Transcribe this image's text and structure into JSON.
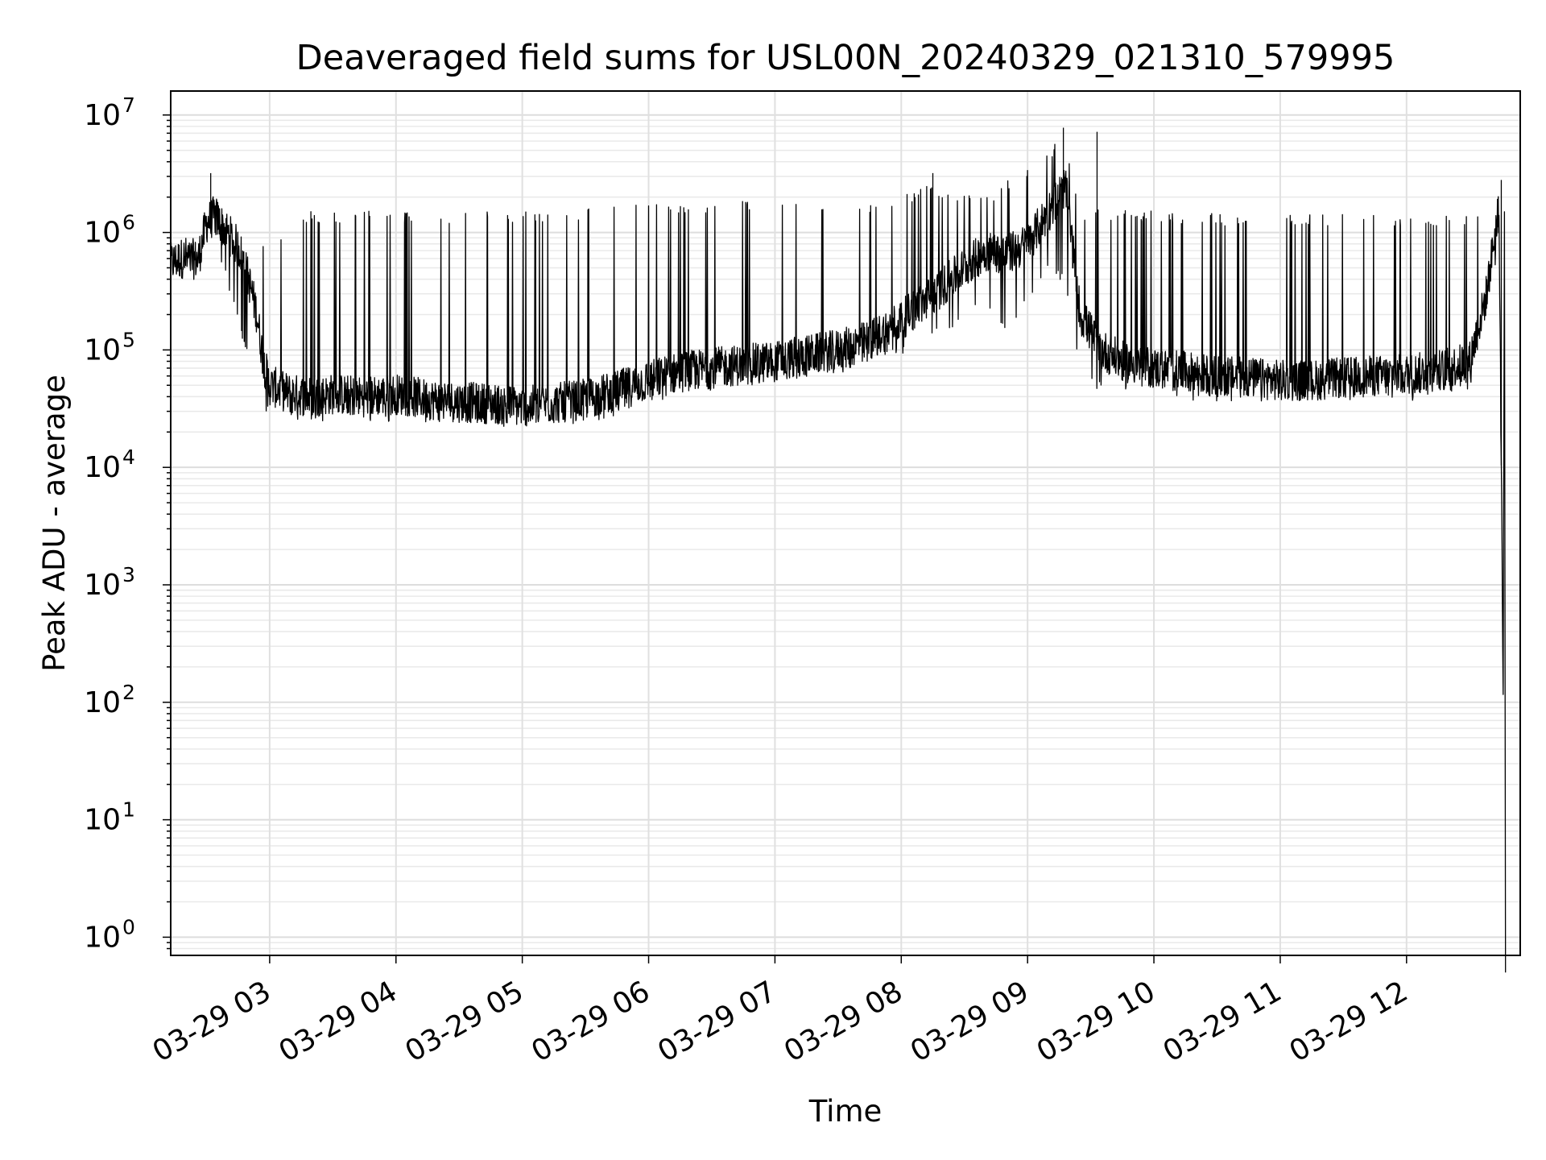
{
  "chart_data": {
    "type": "line",
    "title": "Deaveraged field sums for USL00N_20240329_021310_579995",
    "xlabel": "Time",
    "ylabel": "Peak ADU - average",
    "yscale": "log",
    "xlim": [
      "2024-03-29 02:13",
      "2024-03-29 12:54"
    ],
    "ylim": [
      0.7,
      16000000
    ],
    "grid": true,
    "line_color": "#000000",
    "x_tick_labels": [
      "03-29 03",
      "03-29 04",
      "03-29 05",
      "03-29 06",
      "03-29 07",
      "03-29 08",
      "03-29 09",
      "03-29 10",
      "03-29 11",
      "03-29 12"
    ],
    "y_tick_labels": [
      {
        "base": "10",
        "exp": "0"
      },
      {
        "base": "10",
        "exp": "1"
      },
      {
        "base": "10",
        "exp": "2"
      },
      {
        "base": "10",
        "exp": "3"
      },
      {
        "base": "10",
        "exp": "4"
      },
      {
        "base": "10",
        "exp": "5"
      },
      {
        "base": "10",
        "exp": "6"
      },
      {
        "base": "10",
        "exp": "7"
      }
    ],
    "series": [
      {
        "color": "#000000",
        "x": [
          "2024-03-29 02:13",
          "2024-03-29 02:20",
          "2024-03-29 02:26",
          "2024-03-29 02:30",
          "2024-03-29 02:34",
          "2024-03-29 02:38",
          "2024-03-29 02:42",
          "2024-03-29 02:46",
          "2024-03-29 02:50",
          "2024-03-29 02:54",
          "2024-03-29 02:57",
          "2024-03-29 03:00",
          "2024-03-29 03:10",
          "2024-03-29 03:20",
          "2024-03-29 03:30",
          "2024-03-29 03:45",
          "2024-03-29 04:00",
          "2024-03-29 04:15",
          "2024-03-29 04:30",
          "2024-03-29 04:45",
          "2024-03-29 05:00",
          "2024-03-29 05:15",
          "2024-03-29 05:30",
          "2024-03-29 05:45",
          "2024-03-29 06:00",
          "2024-03-29 06:15",
          "2024-03-29 06:30",
          "2024-03-29 06:45",
          "2024-03-29 07:00",
          "2024-03-29 07:15",
          "2024-03-29 07:30",
          "2024-03-29 07:45",
          "2024-03-29 08:00",
          "2024-03-29 08:10",
          "2024-03-29 08:20",
          "2024-03-29 08:30",
          "2024-03-29 08:40",
          "2024-03-29 08:50",
          "2024-03-29 09:00",
          "2024-03-29 09:10",
          "2024-03-29 09:18",
          "2024-03-29 09:25",
          "2024-03-29 09:35",
          "2024-03-29 09:45",
          "2024-03-29 10:00",
          "2024-03-29 10:15",
          "2024-03-29 10:30",
          "2024-03-29 10:45",
          "2024-03-29 11:00",
          "2024-03-29 11:15",
          "2024-03-29 11:30",
          "2024-03-29 11:45",
          "2024-03-29 12:00",
          "2024-03-29 12:10",
          "2024-03-29 12:20",
          "2024-03-29 12:30",
          "2024-03-29 12:38",
          "2024-03-29 12:42",
          "2024-03-29 12:44",
          "2024-03-29 12:47"
        ],
        "baseline": [
          550000,
          620000,
          580000,
          1200000,
          1400000,
          1100000,
          900000,
          700000,
          400000,
          200000,
          80000,
          50000,
          42000,
          40000,
          42000,
          40000,
          42000,
          38000,
          36000,
          35000,
          33000,
          35000,
          38000,
          45000,
          55000,
          65000,
          70000,
          75000,
          80000,
          90000,
          100000,
          120000,
          180000,
          250000,
          350000,
          500000,
          700000,
          650000,
          800000,
          1500000,
          2500000,
          200000,
          100000,
          80000,
          70000,
          65000,
          60000,
          58000,
          55000,
          55000,
          58000,
          60000,
          62000,
          65000,
          70000,
          80000,
          300000,
          1000000,
          1500000,
          0.5
        ],
        "spike_top": [
          600000,
          700000,
          650000,
          1500000,
          1900000,
          1700000,
          1600000,
          1400000,
          1300000,
          1000000,
          800000,
          700000,
          1200000,
          1400000,
          1400000,
          1400000,
          1400000,
          1400000,
          1400000,
          1400000,
          1400000,
          1400000,
          1500000,
          1600000,
          1600000,
          1600000,
          1700000,
          1700000,
          1700000,
          1700000,
          1700000,
          1700000,
          1800000,
          2500000,
          2200000,
          2000000,
          2000000,
          2500000,
          3500000,
          5000000,
          6000000,
          1500000,
          1400000,
          1400000,
          1400000,
          1400000,
          1300000,
          1300000,
          1300000,
          1300000,
          1300000,
          1300000,
          1300000,
          1300000,
          1300000,
          1300000,
          1400000,
          1600000,
          2000000,
          0.5
        ],
        "dip_bottom": [
          450000,
          500000,
          500000,
          1000000,
          1000000,
          500000,
          300000,
          150000,
          100000,
          60000,
          35000,
          30000,
          28000,
          27000,
          28000,
          27000,
          27000,
          26000,
          25000,
          24000,
          24000,
          25000,
          27000,
          30000,
          38000,
          45000,
          50000,
          55000,
          58000,
          60000,
          70000,
          80000,
          100000,
          120000,
          150000,
          200000,
          250000,
          150000,
          300000,
          500000,
          400000,
          60000,
          50000,
          45000,
          45000,
          42000,
          40000,
          40000,
          40000,
          40000,
          38000,
          38000,
          40000,
          42000,
          45000,
          50000,
          150000,
          500000,
          900000,
          0.5
        ],
        "peaks": [
          {
            "x": "2024-03-29 02:32",
            "y": 3200000
          },
          {
            "x": "2024-03-29 08:15",
            "y": 3200000
          },
          {
            "x": "2024-03-29 09:17",
            "y": 7800000
          },
          {
            "x": "2024-03-29 09:33",
            "y": 7200000
          },
          {
            "x": "2024-03-29 12:45",
            "y": 2800000
          }
        ]
      }
    ]
  }
}
